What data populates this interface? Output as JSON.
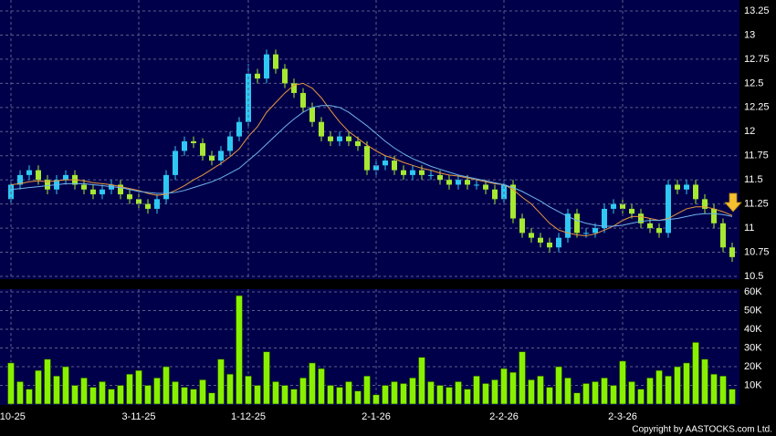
{
  "chart_data": [
    {
      "type": "candlestick",
      "open": [
        11.3,
        11.45,
        11.55,
        11.6,
        11.5,
        11.4,
        11.5,
        11.55,
        11.45,
        11.4,
        11.35,
        11.4,
        11.45,
        11.35,
        11.3,
        11.25,
        11.2,
        11.3,
        11.55,
        11.8,
        11.9,
        11.88,
        11.75,
        11.7,
        11.8,
        11.95,
        12.1,
        12.6,
        12.55,
        12.8,
        12.65,
        12.5,
        12.4,
        12.25,
        12.1,
        11.95,
        11.9,
        11.95,
        11.9,
        11.85,
        11.6,
        11.65,
        11.7,
        11.6,
        11.55,
        11.6,
        11.55,
        11.55,
        11.5,
        11.45,
        11.5,
        11.45,
        11.45,
        11.4,
        11.3,
        11.45,
        11.1,
        10.95,
        10.9,
        10.85,
        10.8,
        10.9,
        11.15,
        10.95,
        10.95,
        11.0,
        11.2,
        11.25,
        11.2,
        11.15,
        11.05,
        11.0,
        10.95,
        11.45,
        11.4,
        11.45,
        11.3,
        11.2,
        11.05,
        10.8
      ],
      "high": [
        11.5,
        11.6,
        11.65,
        11.65,
        11.55,
        11.55,
        11.6,
        11.6,
        11.5,
        11.45,
        11.45,
        11.5,
        11.5,
        11.4,
        11.35,
        11.3,
        11.35,
        11.6,
        11.85,
        11.95,
        11.95,
        11.93,
        11.8,
        11.85,
        12.0,
        12.15,
        12.7,
        12.65,
        12.85,
        12.85,
        12.7,
        12.55,
        12.45,
        12.3,
        12.15,
        12.0,
        12.0,
        12.0,
        11.95,
        11.9,
        11.7,
        11.75,
        11.75,
        11.65,
        11.65,
        11.65,
        11.6,
        11.6,
        11.55,
        11.55,
        11.55,
        11.5,
        11.5,
        11.45,
        11.5,
        11.5,
        11.15,
        11.0,
        10.95,
        10.9,
        10.95,
        11.2,
        11.2,
        11.0,
        11.05,
        11.25,
        11.3,
        11.3,
        11.25,
        11.2,
        11.1,
        11.05,
        11.5,
        11.5,
        11.5,
        11.5,
        11.35,
        11.25,
        11.1,
        10.85
      ],
      "low": [
        11.25,
        11.4,
        11.5,
        11.45,
        11.35,
        11.35,
        11.45,
        11.4,
        11.35,
        11.3,
        11.3,
        11.35,
        11.3,
        11.25,
        11.2,
        11.15,
        11.15,
        11.25,
        11.5,
        11.75,
        11.83,
        11.7,
        11.65,
        11.65,
        11.75,
        11.9,
        12.05,
        12.5,
        12.5,
        12.6,
        12.45,
        12.35,
        12.2,
        12.05,
        11.9,
        11.85,
        11.85,
        11.85,
        11.8,
        11.55,
        11.55,
        11.6,
        11.55,
        11.5,
        11.5,
        11.5,
        11.5,
        11.45,
        11.4,
        11.4,
        11.4,
        11.4,
        11.35,
        11.25,
        11.25,
        11.05,
        10.9,
        10.85,
        10.8,
        10.75,
        10.75,
        10.85,
        10.9,
        10.9,
        10.9,
        10.95,
        11.15,
        11.15,
        11.1,
        11.0,
        10.95,
        10.9,
        10.9,
        11.35,
        11.35,
        11.25,
        11.15,
        11.0,
        10.75,
        10.65
      ],
      "close": [
        11.45,
        11.55,
        11.6,
        11.5,
        11.4,
        11.5,
        11.55,
        11.45,
        11.4,
        11.35,
        11.4,
        11.45,
        11.35,
        11.3,
        11.25,
        11.2,
        11.3,
        11.55,
        11.8,
        11.9,
        11.88,
        11.75,
        11.7,
        11.8,
        11.95,
        12.1,
        12.6,
        12.55,
        12.8,
        12.65,
        12.5,
        12.4,
        12.25,
        12.1,
        11.95,
        11.9,
        11.95,
        11.9,
        11.85,
        11.6,
        11.65,
        11.7,
        11.6,
        11.55,
        11.6,
        11.55,
        11.55,
        11.5,
        11.45,
        11.5,
        11.45,
        11.45,
        11.4,
        11.3,
        11.45,
        11.1,
        10.95,
        10.9,
        10.85,
        10.8,
        10.9,
        11.15,
        10.95,
        10.95,
        11.0,
        11.2,
        11.25,
        11.2,
        11.15,
        11.05,
        11.0,
        10.95,
        11.45,
        11.4,
        11.45,
        11.3,
        11.2,
        11.05,
        10.8,
        10.7
      ],
      "up_color": "#2ec8f2",
      "down_color": "#a6e832",
      "lines": [
        {
          "color": "#e8983c",
          "values": [
            11.45,
            11.46,
            11.48,
            11.49,
            11.48,
            11.49,
            11.5,
            11.5,
            11.49,
            11.47,
            11.46,
            11.45,
            11.43,
            11.41,
            11.39,
            11.36,
            11.34,
            11.35,
            11.39,
            11.44,
            11.5,
            11.55,
            11.61,
            11.67,
            11.74,
            11.82,
            11.95,
            12.05,
            12.2,
            12.3,
            12.4,
            12.48,
            12.5,
            12.45,
            12.35,
            12.22,
            12.1,
            12.0,
            11.93,
            11.86,
            11.8,
            11.75,
            11.72,
            11.68,
            11.65,
            11.62,
            11.6,
            11.57,
            11.55,
            11.54,
            11.52,
            11.5,
            11.48,
            11.46,
            11.45,
            11.4,
            11.32,
            11.25,
            11.15,
            11.05,
            10.98,
            10.95,
            10.93,
            10.92,
            10.94,
            10.98,
            11.02,
            11.08,
            11.12,
            11.12,
            11.1,
            11.08,
            11.1,
            11.15,
            11.2,
            11.22,
            11.22,
            11.2,
            11.17,
            11.13
          ]
        },
        {
          "color": "#6fb4ec",
          "values": [
            11.4,
            11.41,
            11.42,
            11.43,
            11.44,
            11.45,
            11.46,
            11.46,
            11.46,
            11.45,
            11.44,
            11.43,
            11.42,
            11.4,
            11.38,
            11.37,
            11.36,
            11.36,
            11.37,
            11.39,
            11.42,
            11.45,
            11.48,
            11.52,
            11.57,
            11.62,
            11.7,
            11.78,
            11.87,
            11.96,
            12.05,
            12.13,
            12.2,
            12.25,
            12.27,
            12.27,
            12.25,
            12.2,
            12.13,
            12.06,
            11.98,
            11.9,
            11.83,
            11.77,
            11.72,
            11.68,
            11.64,
            11.61,
            11.58,
            11.55,
            11.53,
            11.51,
            11.49,
            11.47,
            11.45,
            11.42,
            11.38,
            11.33,
            11.28,
            11.22,
            11.17,
            11.12,
            11.08,
            11.05,
            11.03,
            11.02,
            11.02,
            11.03,
            11.05,
            11.07,
            11.08,
            11.08,
            11.09,
            11.1,
            11.12,
            11.14,
            11.15,
            11.15,
            11.14,
            11.12
          ]
        }
      ],
      "ylim": [
        10.5,
        13.25
      ],
      "yticks": [
        10.5,
        10.75,
        11,
        11.25,
        11.5,
        11.75,
        12,
        12.25,
        12.5,
        12.75,
        13,
        13.25
      ],
      "grid": true
    },
    {
      "type": "bar",
      "categories": [
        "-10-25",
        null,
        null,
        null,
        null,
        null,
        null,
        null,
        null,
        null,
        null,
        null,
        null,
        null,
        "3-11-25",
        null,
        null,
        null,
        null,
        null,
        null,
        null,
        null,
        null,
        null,
        null,
        "1-12-25",
        null,
        null,
        null,
        null,
        null,
        null,
        null,
        null,
        null,
        null,
        null,
        null,
        null,
        "2-1-26",
        null,
        null,
        null,
        null,
        null,
        null,
        null,
        null,
        null,
        null,
        null,
        null,
        null,
        "2-2-26",
        null,
        null,
        null,
        null,
        null,
        null,
        null,
        null,
        null,
        null,
        null,
        null,
        "2-3-26",
        null,
        null,
        null,
        null,
        null,
        null,
        null,
        null,
        null,
        null,
        null,
        null
      ],
      "values": [
        22000,
        12000,
        8000,
        18000,
        24000,
        15000,
        20000,
        10000,
        14000,
        9000,
        12000,
        8000,
        10000,
        16000,
        18000,
        10000,
        14000,
        20000,
        12000,
        9000,
        8000,
        13000,
        6000,
        24000,
        16000,
        58000,
        15000,
        10000,
        28000,
        12000,
        10000,
        8000,
        14000,
        22000,
        19000,
        10000,
        9000,
        12000,
        7000,
        15000,
        5000,
        10000,
        12000,
        11000,
        14000,
        25000,
        12000,
        10000,
        9000,
        12000,
        8000,
        15000,
        11000,
        13000,
        19000,
        17000,
        28000,
        13000,
        15000,
        9000,
        20000,
        14000,
        6000,
        11000,
        12000,
        14000,
        10000,
        23000,
        12000,
        8000,
        14000,
        18000,
        15000,
        20000,
        22000,
        33000,
        24000,
        16000,
        15000,
        8000
      ],
      "color": "#88f000",
      "ylim": [
        0,
        60000
      ],
      "yticks": [
        {
          "value": 10000,
          "label": "10K"
        },
        {
          "value": 20000,
          "label": "20K"
        },
        {
          "value": 30000,
          "label": "30K"
        },
        {
          "value": 40000,
          "label": "40K"
        },
        {
          "value": 50000,
          "label": "50K"
        },
        {
          "value": 60000,
          "label": "60K"
        }
      ],
      "grid": true
    }
  ],
  "footer": "Copyright by AASTOCKS.com Ltd."
}
